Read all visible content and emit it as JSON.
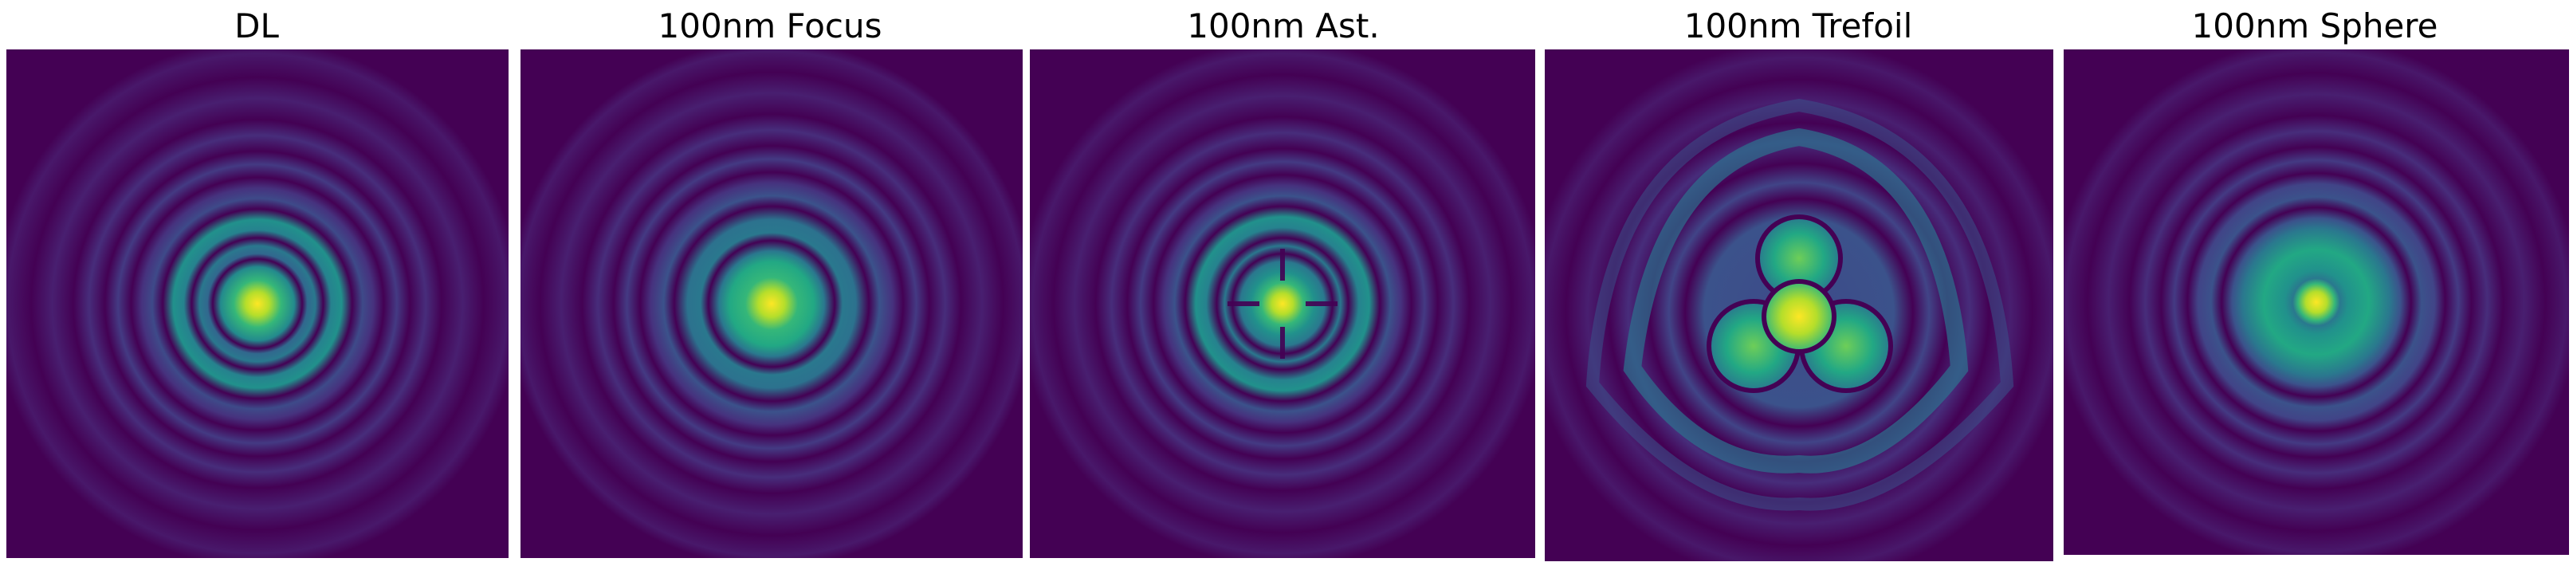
{
  "figure": {
    "background_color": "#ffffff",
    "colormap": "viridis",
    "colormap_stops": [
      "#440154",
      "#3b528b",
      "#21918c",
      "#5ec962",
      "#fde725"
    ],
    "panels": [
      {
        "id": "dl",
        "title": "DL"
      },
      {
        "id": "focus",
        "title": "100nm Focus"
      },
      {
        "id": "ast",
        "title": "100nm Ast."
      },
      {
        "id": "trefoil",
        "title": "100nm Trefoil"
      },
      {
        "id": "sphere",
        "title": "100nm Sphere"
      }
    ]
  }
}
